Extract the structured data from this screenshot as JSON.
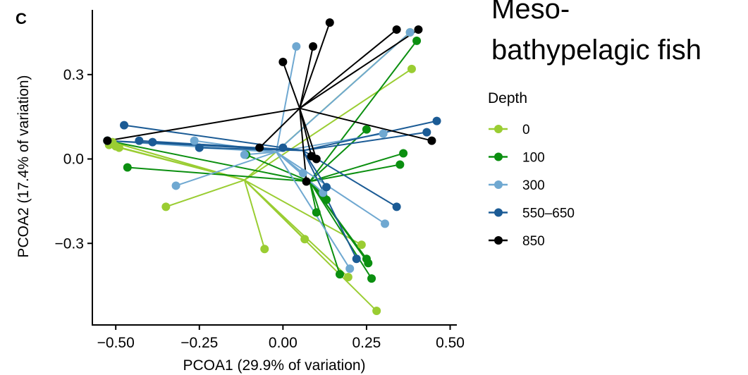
{
  "panel_label": "C",
  "chart_data": {
    "type": "scatter",
    "subtype": "pcoa-spider",
    "title": "Meso-\nbathypelagic fish",
    "xlabel": "PCOA1 (29.9% of variation)",
    "ylabel": "PCOA2 (17.4% of variation)",
    "xlim": [
      -0.57,
      0.52
    ],
    "ylim": [
      -0.59,
      0.53
    ],
    "x_ticks": [
      -0.5,
      -0.25,
      0.0,
      0.25,
      0.5
    ],
    "x_tick_labels": [
      "−0.50",
      "−0.25",
      "0.00",
      "0.25",
      "0.50"
    ],
    "y_ticks": [
      -0.3,
      0.0,
      0.3
    ],
    "y_tick_labels": [
      "−0.3",
      "0.0",
      "0.3"
    ],
    "grid": false,
    "legend": {
      "title": "Depth",
      "placement": "right"
    },
    "series": [
      {
        "name": "0",
        "color": "#9ACD32",
        "centroid": [
          -0.115,
          -0.075
        ],
        "points": [
          [
            -0.525,
            0.065
          ],
          [
            -0.51,
            0.06
          ],
          [
            -0.52,
            0.05
          ],
          [
            -0.5,
            0.045
          ],
          [
            -0.49,
            0.04
          ],
          [
            -0.35,
            -0.17
          ],
          [
            -0.055,
            -0.32
          ],
          [
            0.065,
            -0.285
          ],
          [
            0.195,
            -0.42
          ],
          [
            0.235,
            -0.305
          ],
          [
            0.28,
            -0.54
          ],
          [
            0.385,
            0.32
          ],
          [
            0.38,
            0.45
          ]
        ]
      },
      {
        "name": "100",
        "color": "#0B8F10",
        "centroid": [
          0.08,
          -0.08
        ],
        "points": [
          [
            -0.525,
            0.065
          ],
          [
            -0.465,
            -0.03
          ],
          [
            -0.11,
            0.015
          ],
          [
            0.1,
            -0.19
          ],
          [
            0.12,
            -0.13
          ],
          [
            0.13,
            -0.145
          ],
          [
            0.17,
            -0.41
          ],
          [
            0.25,
            -0.355
          ],
          [
            0.255,
            -0.37
          ],
          [
            0.265,
            -0.425
          ],
          [
            0.25,
            0.105
          ],
          [
            0.35,
            -0.02
          ],
          [
            0.36,
            0.02
          ],
          [
            0.4,
            0.42
          ]
        ]
      },
      {
        "name": "300",
        "color": "#6FA8D1",
        "centroid": [
          -0.02,
          0.025
        ],
        "points": [
          [
            -0.525,
            0.065
          ],
          [
            -0.32,
            -0.095
          ],
          [
            -0.265,
            0.065
          ],
          [
            -0.25,
            0.04
          ],
          [
            -0.115,
            0.015
          ],
          [
            0.04,
            0.4
          ],
          [
            0.06,
            -0.05
          ],
          [
            0.12,
            -0.12
          ],
          [
            0.2,
            -0.39
          ],
          [
            0.3,
            0.09
          ],
          [
            0.305,
            -0.23
          ],
          [
            0.38,
            0.45
          ]
        ]
      },
      {
        "name": "550–650",
        "color": "#1B5B95",
        "centroid": [
          0.06,
          0.03
        ],
        "points": [
          [
            -0.525,
            0.065
          ],
          [
            -0.475,
            0.12
          ],
          [
            -0.43,
            0.065
          ],
          [
            -0.39,
            0.06
          ],
          [
            -0.25,
            0.04
          ],
          [
            0.0,
            0.04
          ],
          [
            0.13,
            -0.1
          ],
          [
            0.22,
            -0.355
          ],
          [
            0.34,
            -0.17
          ],
          [
            0.43,
            0.095
          ],
          [
            0.46,
            0.135
          ]
        ]
      },
      {
        "name": "850",
        "color": "#000000",
        "centroid": [
          0.05,
          0.18
        ],
        "points": [
          [
            -0.525,
            0.065
          ],
          [
            -0.07,
            0.04
          ],
          [
            0.0,
            0.345
          ],
          [
            0.09,
            0.4
          ],
          [
            0.085,
            0.01
          ],
          [
            0.07,
            -0.08
          ],
          [
            0.1,
            0.0
          ],
          [
            0.14,
            0.485
          ],
          [
            0.34,
            0.46
          ],
          [
            0.405,
            0.46
          ],
          [
            0.445,
            0.065
          ]
        ]
      }
    ]
  }
}
